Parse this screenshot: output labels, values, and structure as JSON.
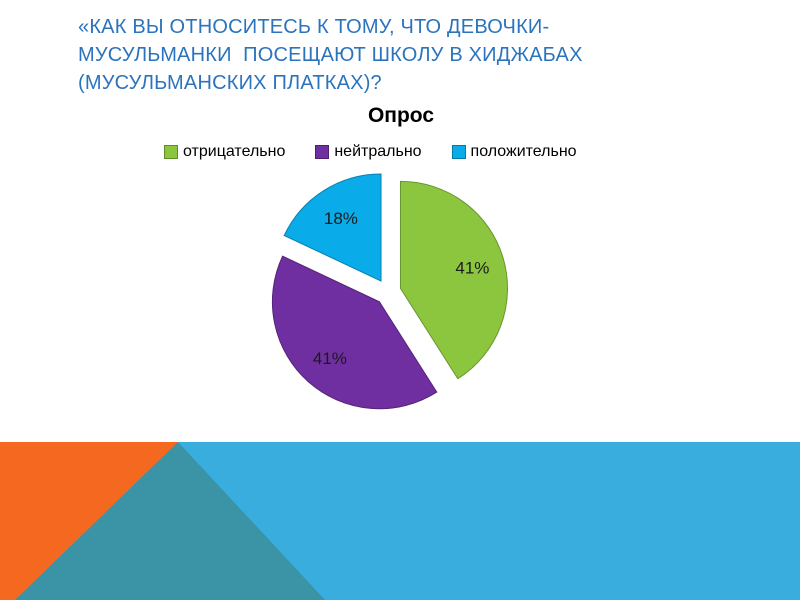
{
  "slide": {
    "title": "«КАК ВЫ ОТНОСИТЕСЬ К ТОМУ, ЧТО ДЕВОЧКИ-МУСУЛЬМАНКИ  ПОСЕЩАЮТ ШКОЛУ В ХИДЖАБАХ (МУСУЛЬМАНСКИХ ПЛАТКАХ)?",
    "title_color": "#2B74BD"
  },
  "chart_data": {
    "type": "pie",
    "title": "Опрос",
    "legend_position": "top",
    "exploded": true,
    "start_angle_deg": 0,
    "slices": [
      {
        "label": "отрицательно",
        "value": 41,
        "display": "41%",
        "color": "#8CC63F"
      },
      {
        "label": "нейтрально",
        "value": 41,
        "display": "41%",
        "color": "#702FA0"
      },
      {
        "label": "положительно",
        "value": 18,
        "display": "18%",
        "color": "#09ACE8"
      }
    ]
  },
  "decoration": {
    "band_color": "#38ADDE",
    "orange_color": "#F4691F",
    "teal_color": "#3B93A6"
  }
}
